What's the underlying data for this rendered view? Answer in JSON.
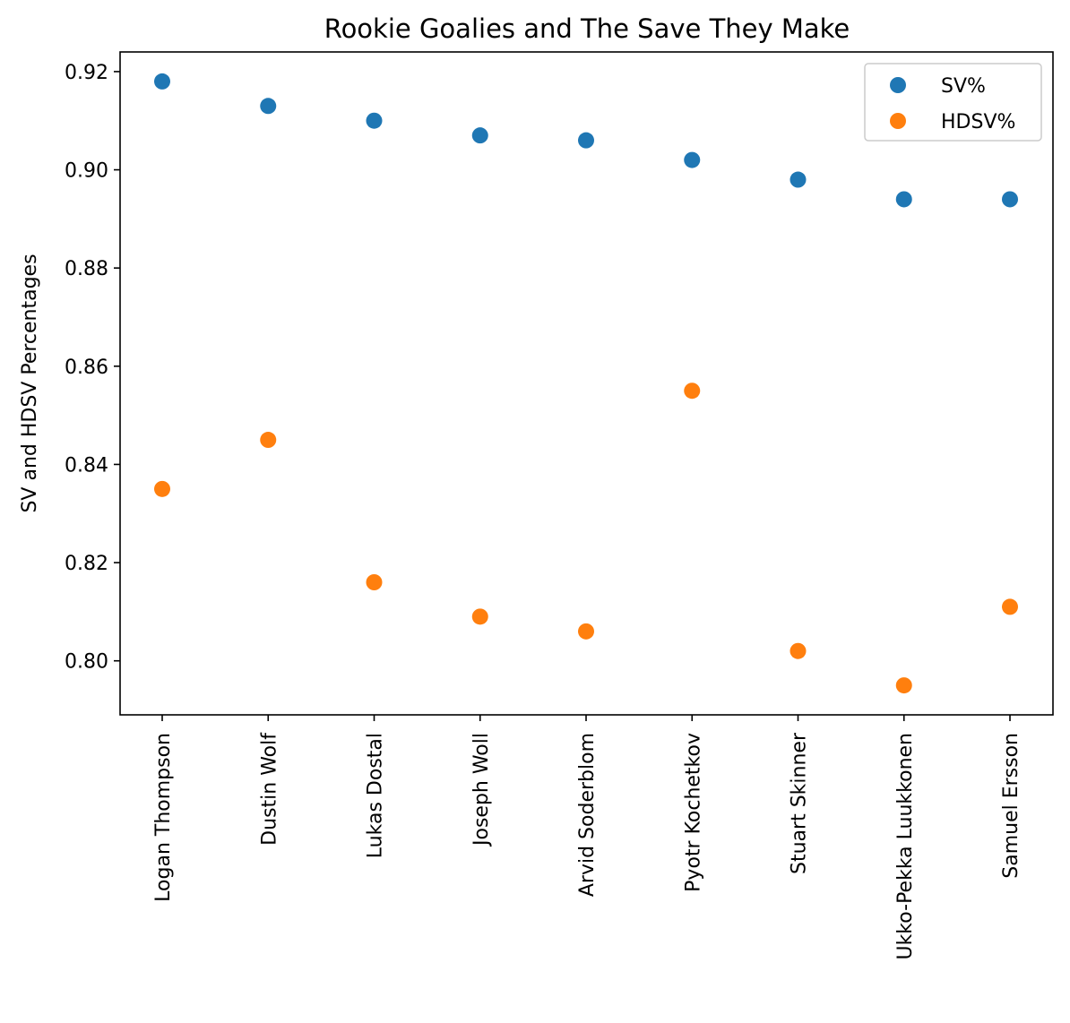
{
  "chart_data": {
    "type": "scatter",
    "title": "Rookie Goalies and The Save They Make",
    "xlabel": "",
    "ylabel": "SV and HDSV Percentages",
    "categories": [
      "Logan Thompson",
      "Dustin Wolf",
      "Lukas Dostal",
      "Joseph Woll",
      "Arvid Soderblom",
      "Pyotr Kochetkov",
      "Stuart Skinner",
      "Ukko-Pekka Luukkonen",
      "Samuel Ersson"
    ],
    "series": [
      {
        "name": "SV%",
        "color": "#1f77b4",
        "values": [
          0.918,
          0.913,
          0.91,
          0.907,
          0.906,
          0.902,
          0.898,
          0.894,
          0.894
        ]
      },
      {
        "name": "HDSV%",
        "color": "#ff7f0e",
        "values": [
          0.835,
          0.845,
          0.816,
          0.809,
          0.806,
          0.855,
          0.802,
          0.795,
          0.811
        ]
      }
    ],
    "ylim": [
      0.789,
      0.924
    ],
    "yticks": [
      0.8,
      0.82,
      0.84,
      0.86,
      0.88,
      0.9,
      0.92
    ],
    "ytick_labels": [
      "0.80",
      "0.82",
      "0.84",
      "0.86",
      "0.88",
      "0.90",
      "0.92"
    ],
    "grid": false,
    "legend_position": "top-right"
  }
}
